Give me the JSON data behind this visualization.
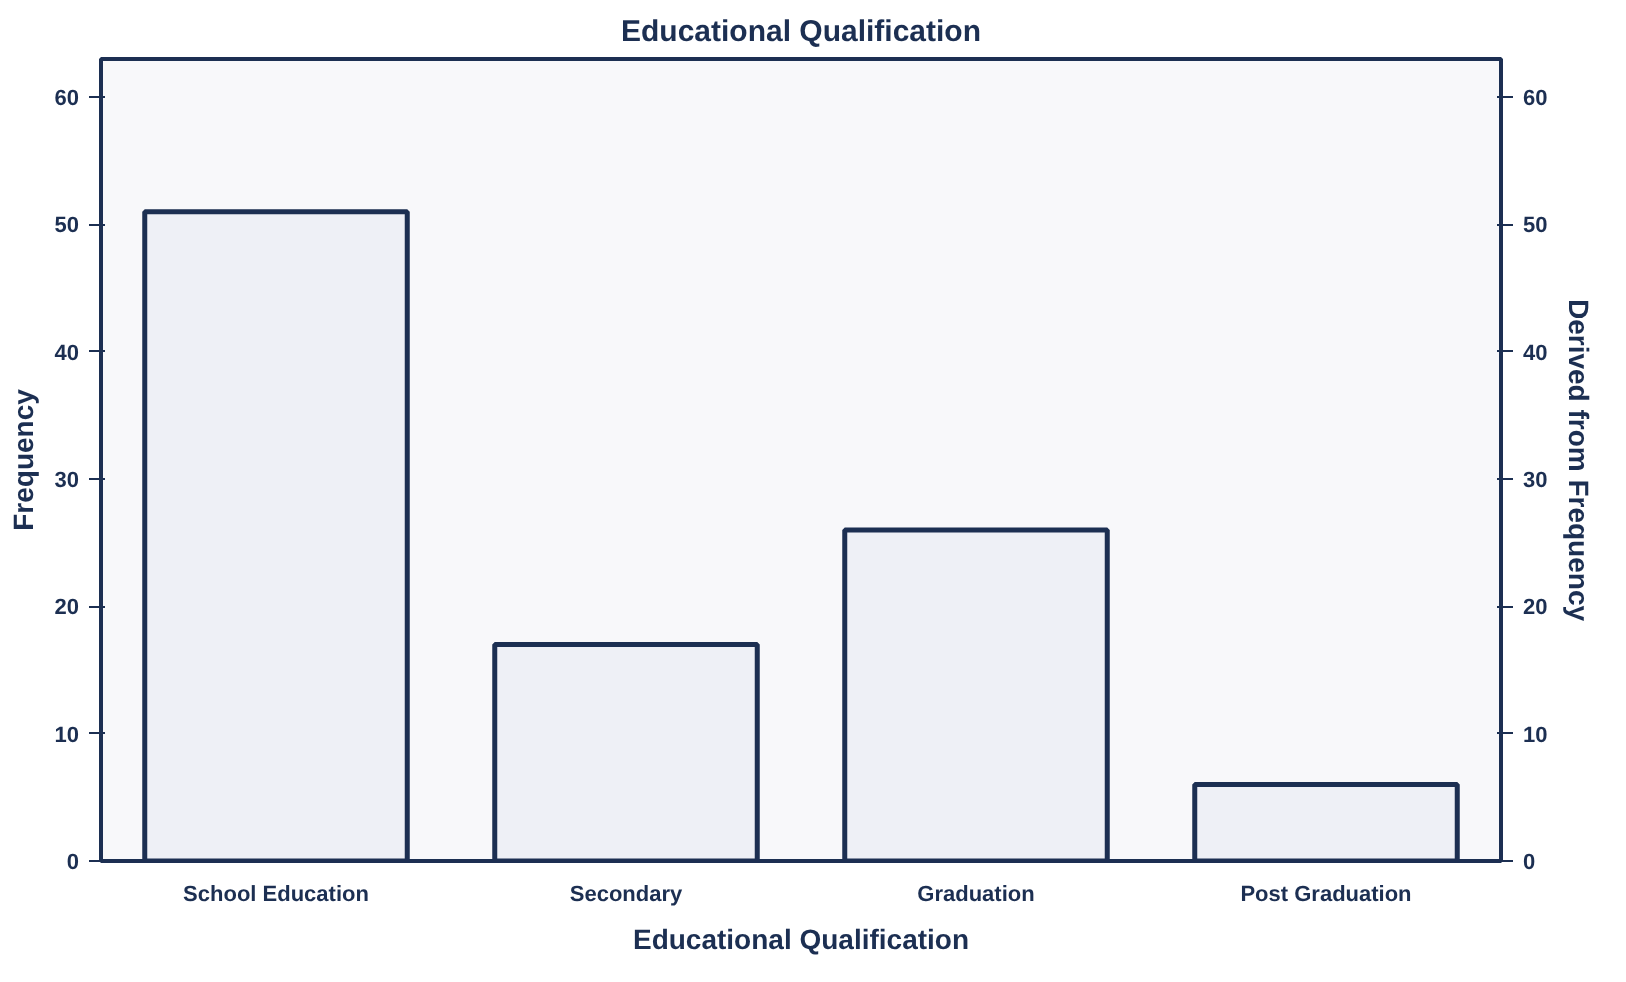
{
  "chart_data": {
    "type": "bar",
    "title": "Educational Qualification",
    "xlabel": "Educational Qualification",
    "ylabel": "Frequency",
    "y2label": "Derived from Frequency",
    "categories": [
      "School Education",
      "Secondary",
      "Graduation",
      "Post Graduation"
    ],
    "values": [
      51,
      17,
      26,
      6
    ],
    "color": "#eef0f6",
    "ylim": [
      0,
      63
    ],
    "yticks": [
      0,
      10,
      20,
      30,
      40,
      50,
      60
    ],
    "y2lim": [
      0,
      63
    ],
    "y2ticks": [
      0,
      10,
      20,
      30,
      40,
      50,
      60
    ],
    "grid": false
  }
}
